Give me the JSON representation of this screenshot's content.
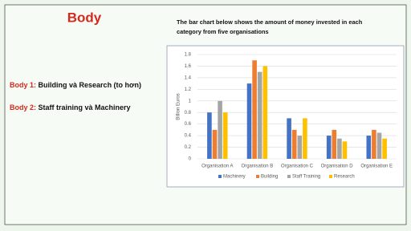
{
  "header": {
    "title": "Body",
    "description": [
      "The bar chart below shows the amount of money invested in each",
      "category from five organisations"
    ]
  },
  "body_points": [
    {
      "label": "Body 1:",
      "text": "Building và Research (to hơn)"
    },
    {
      "label": "Body 2:",
      "text": "Staff training và Machinery"
    }
  ],
  "chart_data": {
    "type": "bar",
    "y_label": "Billion Euros",
    "categories": [
      "Organisation A",
      "Organisation B",
      "Organisation C",
      "Organisation D",
      "Organisation E"
    ],
    "series": [
      {
        "name": "Machinery",
        "color": "#4472c4",
        "values": [
          0.8,
          1.3,
          0.7,
          0.4,
          0.4
        ]
      },
      {
        "name": "Building",
        "color": "#ed7d31",
        "values": [
          0.5,
          1.7,
          0.5,
          0.5,
          0.5
        ]
      },
      {
        "name": "Staff Training",
        "color": "#a5a5a5",
        "values": [
          1.0,
          1.5,
          0.4,
          0.35,
          0.45
        ]
      },
      {
        "name": "Research",
        "color": "#ffc000",
        "values": [
          0.8,
          1.6,
          0.7,
          0.3,
          0.35
        ]
      }
    ],
    "ylim": [
      0,
      1.8
    ],
    "yticks": [
      0,
      0.2,
      0.4,
      0.6,
      0.8,
      1,
      1.2,
      1.4,
      1.6,
      1.8
    ],
    "grid": true,
    "legend": "bottom"
  }
}
